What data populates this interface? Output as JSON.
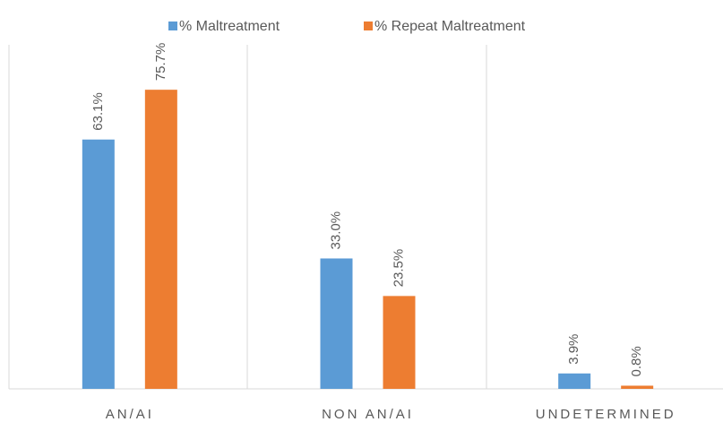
{
  "chart_data": {
    "type": "bar",
    "categories": [
      "AN/AI",
      "NON AN/AI",
      "UNDETERMINED"
    ],
    "series": [
      {
        "name": "% Maltreatment",
        "color": "#5b9bd5",
        "values": [
          63.1,
          33.0,
          3.9
        ],
        "value_labels": [
          "63.1%",
          "33.0%",
          "3.9%"
        ]
      },
      {
        "name": "% Repeat Maltreatment",
        "color": "#ed7d31",
        "values": [
          75.7,
          23.5,
          0.8
        ],
        "value_labels": [
          "75.7%",
          "23.5%",
          "0.8%"
        ]
      }
    ],
    "legend": "top"
  }
}
